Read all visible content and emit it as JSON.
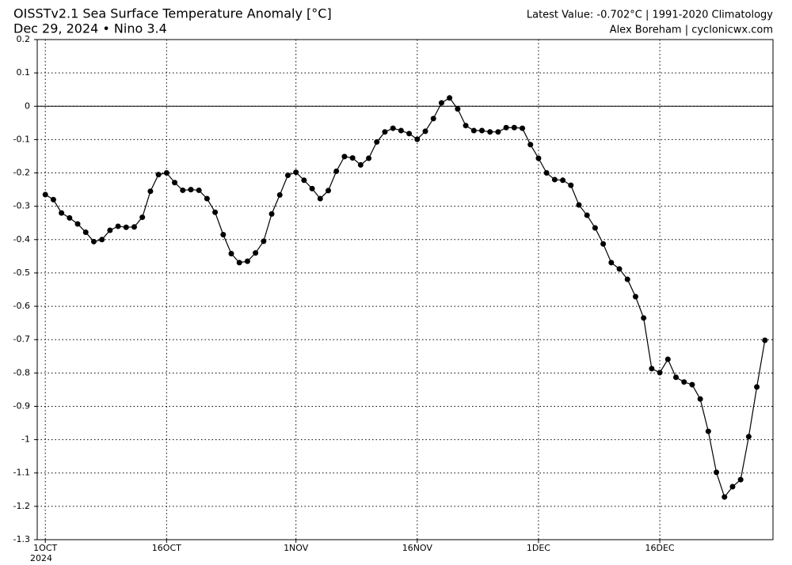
{
  "chart_data": {
    "type": "line",
    "title": "OISSTv2.1 Sea Surface Temperature Anomaly [°C]",
    "subtitle": "Dec 29, 2024 • Nino 3.4",
    "annotations": [
      "Latest Value: -0.702°C | 1991-2020 Climatology",
      "Alex Boreham | cyclonicwx.com"
    ],
    "x_year_label": "2024",
    "x": [
      "2024-10-01",
      "2024-10-02",
      "2024-10-03",
      "2024-10-04",
      "2024-10-05",
      "2024-10-06",
      "2024-10-07",
      "2024-10-08",
      "2024-10-09",
      "2024-10-10",
      "2024-10-11",
      "2024-10-12",
      "2024-10-13",
      "2024-10-14",
      "2024-10-15",
      "2024-10-16",
      "2024-10-17",
      "2024-10-18",
      "2024-10-19",
      "2024-10-20",
      "2024-10-21",
      "2024-10-22",
      "2024-10-23",
      "2024-10-24",
      "2024-10-25",
      "2024-10-26",
      "2024-10-27",
      "2024-10-28",
      "2024-10-29",
      "2024-10-30",
      "2024-10-31",
      "2024-11-01",
      "2024-11-02",
      "2024-11-03",
      "2024-11-04",
      "2024-11-05",
      "2024-11-06",
      "2024-11-07",
      "2024-11-08",
      "2024-11-09",
      "2024-11-10",
      "2024-11-11",
      "2024-11-12",
      "2024-11-13",
      "2024-11-14",
      "2024-11-15",
      "2024-11-16",
      "2024-11-17",
      "2024-11-18",
      "2024-11-19",
      "2024-11-20",
      "2024-11-21",
      "2024-11-22",
      "2024-11-23",
      "2024-11-24",
      "2024-11-25",
      "2024-11-26",
      "2024-11-27",
      "2024-11-28",
      "2024-11-29",
      "2024-11-30",
      "2024-12-01",
      "2024-12-02",
      "2024-12-03",
      "2024-12-04",
      "2024-12-05",
      "2024-12-06",
      "2024-12-07",
      "2024-12-08",
      "2024-12-09",
      "2024-12-10",
      "2024-12-11",
      "2024-12-12",
      "2024-12-13",
      "2024-12-14",
      "2024-12-15",
      "2024-12-16",
      "2024-12-17",
      "2024-12-18",
      "2024-12-19",
      "2024-12-20",
      "2024-12-21",
      "2024-12-22",
      "2024-12-23",
      "2024-12-24",
      "2024-12-25",
      "2024-12-26",
      "2024-12-27",
      "2024-12-28",
      "2024-12-29"
    ],
    "values": [
      -0.265,
      -0.28,
      -0.32,
      -0.335,
      -0.353,
      -0.378,
      -0.406,
      -0.4,
      -0.372,
      -0.36,
      -0.363,
      -0.362,
      -0.333,
      -0.255,
      -0.205,
      -0.2,
      -0.229,
      -0.252,
      -0.25,
      -0.252,
      -0.277,
      -0.318,
      -0.385,
      -0.442,
      -0.469,
      -0.465,
      -0.44,
      -0.405,
      -0.323,
      -0.266,
      -0.207,
      -0.198,
      -0.222,
      -0.247,
      -0.277,
      -0.253,
      -0.195,
      -0.151,
      -0.155,
      -0.176,
      -0.156,
      -0.107,
      -0.077,
      -0.066,
      -0.073,
      -0.082,
      -0.099,
      -0.075,
      -0.037,
      0.01,
      0.025,
      -0.008,
      -0.058,
      -0.073,
      -0.073,
      -0.077,
      -0.077,
      -0.064,
      -0.064,
      -0.066,
      -0.115,
      -0.156,
      -0.2,
      -0.22,
      -0.222,
      -0.237,
      -0.296,
      -0.327,
      -0.365,
      -0.413,
      -0.469,
      -0.488,
      -0.519,
      -0.571,
      -0.635,
      -0.787,
      -0.799,
      -0.759,
      -0.813,
      -0.827,
      -0.835,
      -0.878,
      -0.975,
      -1.098,
      -1.172,
      -1.141,
      -1.12,
      -0.991,
      -0.842,
      -0.702
    ],
    "color": "#000000",
    "xlim": [
      "2024-09-30",
      "2024-12-30"
    ],
    "xticks": [
      {
        "value": "2024-10-01",
        "label": "1OCT"
      },
      {
        "value": "2024-10-16",
        "label": "16OCT"
      },
      {
        "value": "2024-11-01",
        "label": "1NOV"
      },
      {
        "value": "2024-11-16",
        "label": "16NOV"
      },
      {
        "value": "2024-12-01",
        "label": "1DEC"
      },
      {
        "value": "2024-12-16",
        "label": "16DEC"
      }
    ],
    "ylim": [
      -1.3,
      0.2
    ],
    "yticks": [
      0.2,
      0.1,
      0,
      -0.1,
      -0.2,
      -0.3,
      -0.4,
      -0.5,
      -0.6,
      -0.7,
      -0.8,
      -0.9,
      -1,
      -1.1,
      -1.2,
      -1.3
    ],
    "grid": true,
    "zero_line": true
  }
}
